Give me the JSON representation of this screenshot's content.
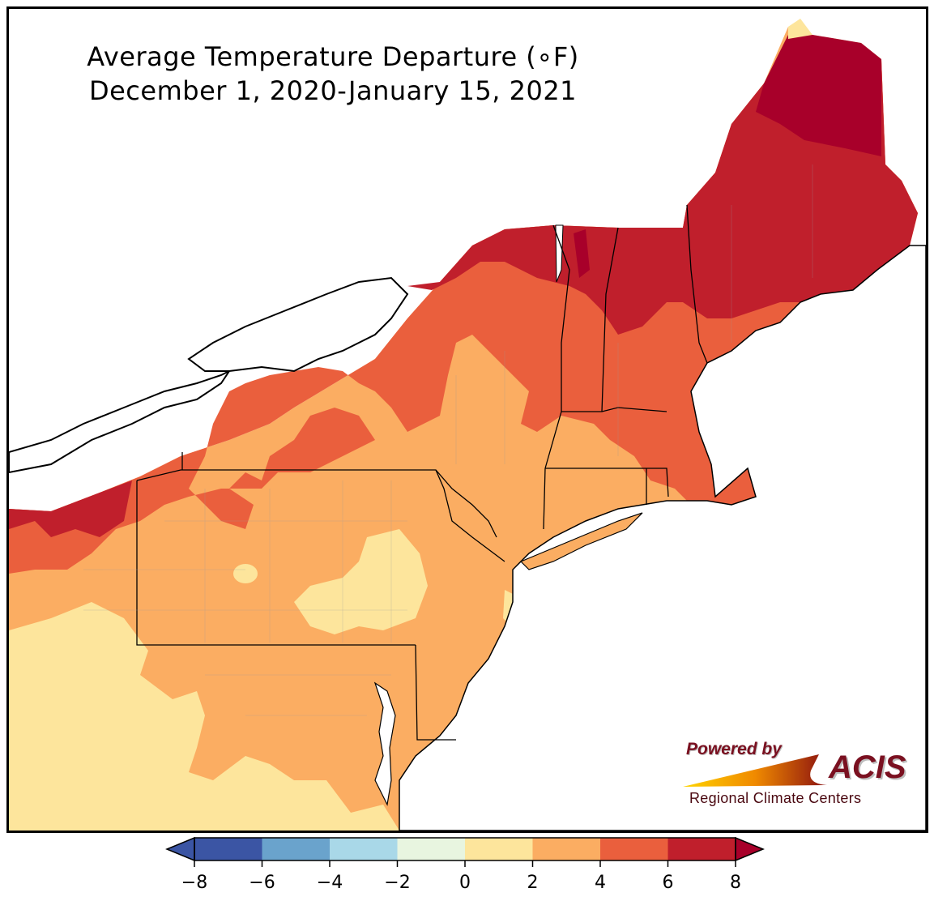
{
  "title": {
    "line1": "Average Temperature Departure (∘F)",
    "line2": "December 1, 2020-January 15, 2021"
  },
  "logo": {
    "powered_by": "Powered by",
    "acis": "ACIS",
    "subtitle": "Regional Climate Centers"
  },
  "legend": {
    "ticks": [
      "−8",
      "−6",
      "−4",
      "−2",
      "0",
      "2",
      "4",
      "6",
      "8"
    ],
    "bins": [
      {
        "range": [
          -8,
          -6
        ],
        "color": "#3b55a4"
      },
      {
        "range": [
          -6,
          -4
        ],
        "color": "#6aa3cc"
      },
      {
        "range": [
          -4,
          -2
        ],
        "color": "#a9d8e8"
      },
      {
        "range": [
          -2,
          0
        ],
        "color": "#e8f5e0"
      },
      {
        "range": [
          0,
          2
        ],
        "color": "#fde59c"
      },
      {
        "range": [
          2,
          4
        ],
        "color": "#fbad62"
      },
      {
        "range": [
          4,
          6
        ],
        "color": "#ea5f3d"
      },
      {
        "range": [
          6,
          8
        ],
        "color": "#c01f2c"
      }
    ],
    "under_color": "#3b55a4",
    "over_color": "#a8002a"
  },
  "map": {
    "units": "°F",
    "region": "Northeast United States",
    "colors": {
      "over8": "#a8002a",
      "d6_8": "#c01f2c",
      "d4_6": "#ea5f3d",
      "d2_4": "#fbad62",
      "d0_2": "#fde59c",
      "dn2_0": "#e8f5e0",
      "water": "#ffffff",
      "border": "#000000",
      "county": "#a0a0a0"
    }
  }
}
